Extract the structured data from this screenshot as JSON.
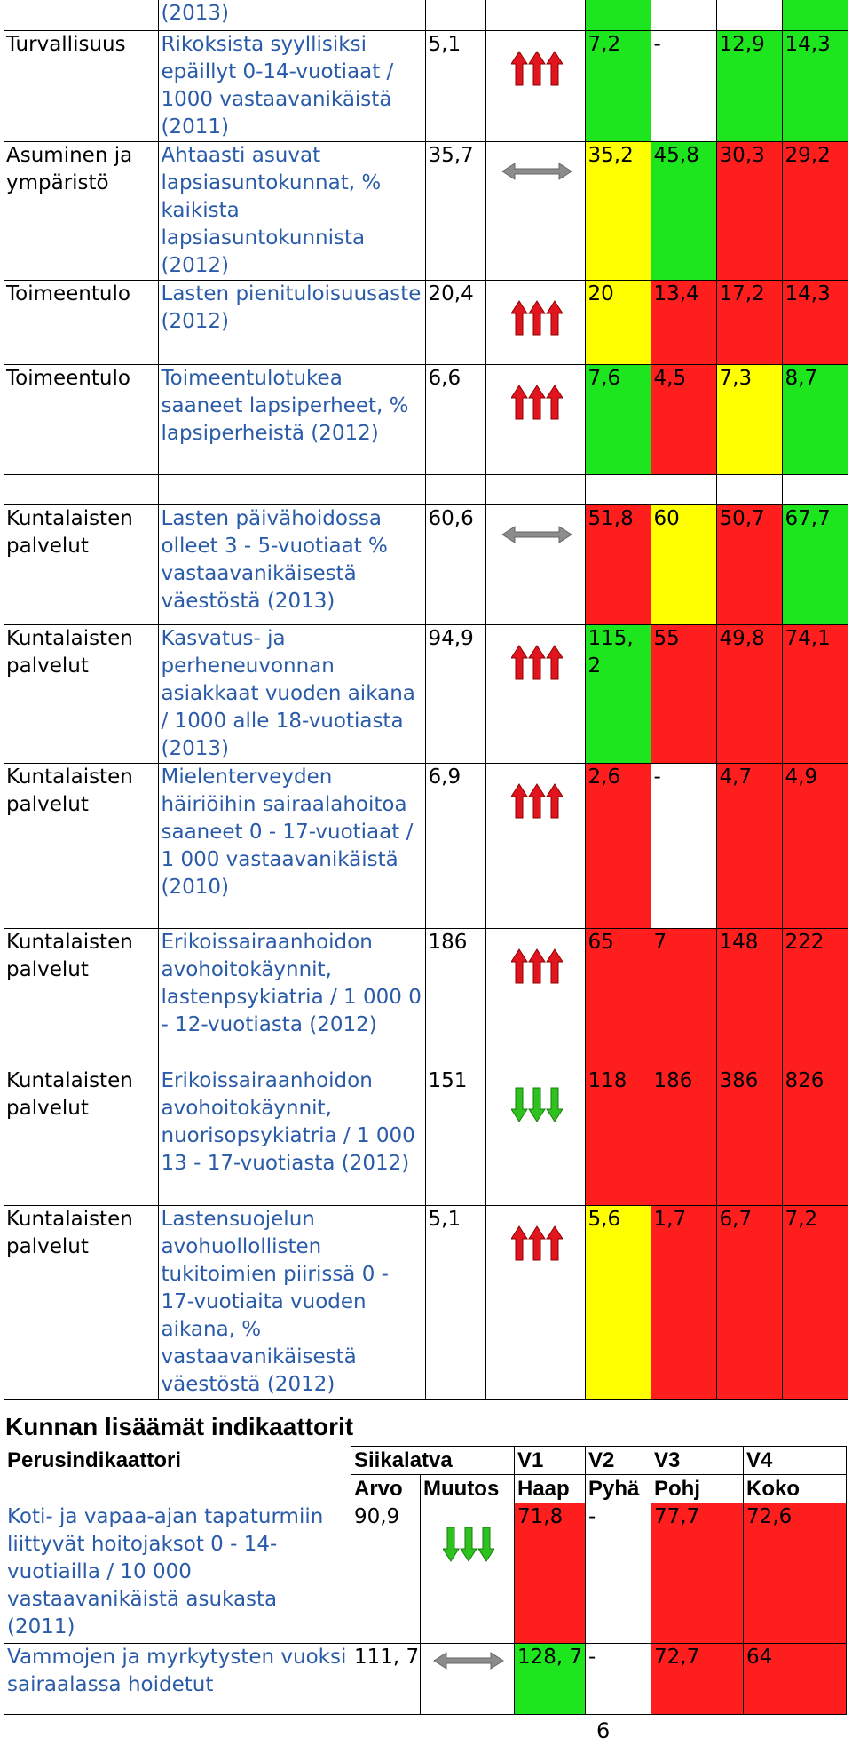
{
  "top_fragment": "(2013)",
  "rows": [
    {
      "cat": "Turvallisuus",
      "ind": "Rikoksista syyllisiksi epäillyt 0-14-vuotiaat / 1000 vastaavanikäistä (2011)",
      "val": "5,1",
      "trend": "up-red",
      "v1": "7,2",
      "v2": "-",
      "v3": "12,9",
      "v4": "14,3",
      "c": [
        "g",
        "w",
        "g",
        "g"
      ]
    },
    {
      "cat": "Asuminen ja ympäristö",
      "ind": "Ahtaasti asuvat lapsiasuntokunnat, % kaikista lapsiasuntokunnista (2012)",
      "val": "35,7",
      "trend": "flat",
      "v1": "35,2",
      "v2": "45,8",
      "v3": "30,3",
      "v4": "29,2",
      "c": [
        "y",
        "g",
        "r",
        "r"
      ]
    },
    {
      "cat": "Toimeentulo",
      "ind": "Lasten pienituloisuusaste (2012)",
      "val": "20,4",
      "trend": "up-red",
      "v1": "20",
      "v2": "13,4",
      "v3": "17,2",
      "v4": "14,3",
      "c": [
        "y",
        "r",
        "r",
        "r"
      ]
    },
    {
      "cat": "Toimeentulo",
      "ind": "Toimeentulotukea saaneet lapsiperheet, % lapsiperheistä (2012)",
      "val": "6,6",
      "trend": "up-red",
      "v1": "7,6",
      "v2": "4,5",
      "v3": "7,3",
      "v4": "8,7",
      "c": [
        "g",
        "r",
        "y",
        "g"
      ]
    },
    {
      "cat": "Kuntalaisten palvelut",
      "ind": "Lasten päivähoidossa olleet 3 - 5-vuotiaat % vastaavanikäisestä väestöstä (2013)",
      "val": "60,6",
      "trend": "flat",
      "v1": "51,8",
      "v2": "60",
      "v3": "50,7",
      "v4": "67,7",
      "c": [
        "r",
        "y",
        "r",
        "g"
      ]
    },
    {
      "cat": "Kuntalaisten palvelut",
      "ind": "Kasvatus- ja perheneuvonnan asiakkaat vuoden aikana / 1000 alle 18-vuotiasta (2013)",
      "val": "94,9",
      "trend": "up-red",
      "v1": "115, 2",
      "v2": "55",
      "v3": "49,8",
      "v4": "74,1",
      "c": [
        "g",
        "r",
        "r",
        "r"
      ]
    },
    {
      "cat": "Kuntalaisten palvelut",
      "ind": "Mielenterveyden häiriöihin sairaalahoitoa saaneet 0 - 17-vuotiaat / 1 000 vastaavanikäistä (2010)",
      "val": "6,9",
      "trend": "up-red",
      "v1": "2,6",
      "v2": "-",
      "v3": "4,7",
      "v4": "4,9",
      "c": [
        "r",
        "w",
        "r",
        "r"
      ]
    },
    {
      "cat": "Kuntalaisten palvelut",
      "ind": "Erikoissairaanhoidon avohoitokäynnit, lastenpsykiatria / 1 000 0 - 12-vuotiasta (2012)",
      "val": "186",
      "trend": "up-red",
      "v1": "65",
      "v2": "7",
      "v3": "148",
      "v4": "222",
      "c": [
        "r",
        "r",
        "r",
        "r"
      ]
    },
    {
      "cat": "Kuntalaisten palvelut",
      "ind": "Erikoissairaanhoidon avohoitokäynnit, nuorisopsykiatria / 1 000 13 - 17-vuotiasta (2012)",
      "val": "151",
      "trend": "down-green",
      "v1": "118",
      "v2": "186",
      "v3": "386",
      "v4": "826",
      "c": [
        "r",
        "r",
        "r",
        "r"
      ]
    },
    {
      "cat": "Kuntalaisten palvelut",
      "ind": "Lastensuojelun avohuollollisten tukitoimien piirissä 0 - 17-vuotiaita vuoden aikana, % vastaavanikäisestä väestöstä (2012)",
      "val": "5,1",
      "trend": "up-red",
      "v1": "5,6",
      "v2": "1,7",
      "v3": "6,7",
      "v4": "7,2",
      "c": [
        "y",
        "r",
        "r",
        "r"
      ]
    }
  ],
  "section_title": "Kunnan lisäämät indikaattorit",
  "table2": {
    "headers": {
      "ind": "Perusindikaattori",
      "muni": "Siikalatva",
      "v1": "V1",
      "v2": "V2",
      "v3": "V3",
      "v4": "V4"
    },
    "subheaders": {
      "arvo": "Arvo",
      "muutos": "Muutos",
      "v1": "Haap",
      "v2": "Pyhä",
      "v3": "Pohj",
      "v4": "Koko"
    },
    "rows": [
      {
        "ind": "Koti- ja vapaa-ajan tapaturmiin liittyvät hoitojaksot 0 - 14-vuotiailla / 10 000 vastaavanikäistä asukasta (2011)",
        "val": "90,9",
        "trend": "down-green",
        "v1": "71,8",
        "v2": "-",
        "v3": "77,7",
        "v4": "72,6",
        "c": [
          "r",
          "w",
          "r",
          "r"
        ]
      },
      {
        "ind": "Vammojen ja myrkytysten vuoksi sairaalassa hoidetut",
        "val": "111, 7",
        "trend": "flat",
        "v1": "128, 7",
        "v2": "-",
        "v3": "72,7",
        "v4": "64",
        "c": [
          "g",
          "w",
          "r",
          "r"
        ]
      }
    ]
  },
  "page_number": "6",
  "colors": {
    "green": "#1ee61e",
    "yellow": "#ffff00",
    "red": "#ff1e1e",
    "link_blue": "#2a5ba8"
  }
}
